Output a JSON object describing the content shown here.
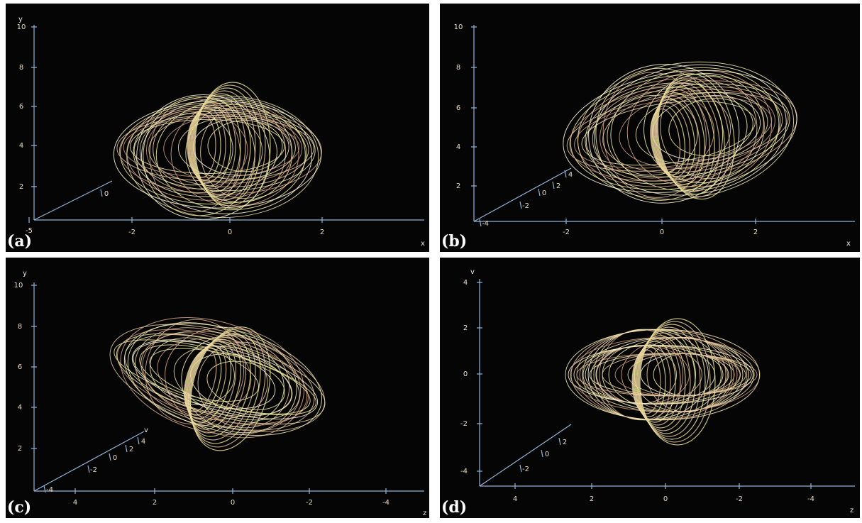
{
  "panels": [
    {
      "label": "(a)",
      "y_axis": {
        "name": "y",
        "ticks": [
          "10",
          "8",
          "6",
          "4",
          "2"
        ]
      },
      "x_axis": {
        "name": "x",
        "ticks": [
          "-5",
          "-2",
          "0",
          "2"
        ]
      },
      "depth_axis": {
        "ticks": [
          "0"
        ]
      }
    },
    {
      "label": "(b)",
      "y_axis": {
        "ticks": [
          "10",
          "8",
          "6",
          "4",
          "2"
        ]
      },
      "x_axis": {
        "name": "x",
        "ticks": [
          "-2",
          "0",
          "2"
        ]
      },
      "depth_axis": {
        "ticks": [
          "-4",
          "-2",
          "0",
          "2",
          "4"
        ]
      }
    },
    {
      "label": "(c)",
      "y_axis": {
        "name": "y",
        "ticks": [
          "10",
          "8",
          "6",
          "4",
          "2"
        ]
      },
      "x_axis": {
        "name": "z",
        "ticks": [
          "4",
          "2",
          "0",
          "-2",
          "-4"
        ]
      },
      "depth_axis": {
        "name": "v",
        "ticks": [
          "-4",
          "-2",
          "0",
          "2",
          "4"
        ]
      }
    },
    {
      "label": "(d)",
      "y_axis": {
        "name": "v",
        "ticks": [
          "4",
          "2",
          "0",
          "-2",
          "-4"
        ]
      },
      "x_axis": {
        "name": "z",
        "ticks": [
          "4",
          "2",
          "0",
          "-2",
          "-4"
        ]
      },
      "depth_axis": {
        "ticks": [
          "-2",
          "0",
          "2"
        ]
      }
    }
  ]
}
